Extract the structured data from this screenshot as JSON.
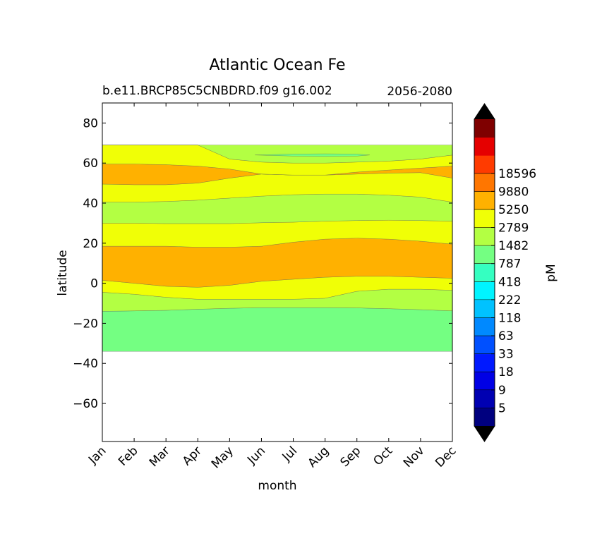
{
  "chart_data": {
    "type": "heatmap",
    "title": "Atlantic Ocean Fe",
    "subtitle_left": "b.e11.BRCP85C5CNBDRD.f09 g16.002",
    "subtitle_right": "2056-2080",
    "xlabel": "month",
    "ylabel": "latitude",
    "x_ticks": [
      "Jan",
      "Feb",
      "Mar",
      "Apr",
      "May",
      "Jun",
      "Jul",
      "Aug",
      "Sep",
      "Oct",
      "Nov",
      "Dec"
    ],
    "xlim": [
      0,
      11
    ],
    "ylim": [
      -79,
      90
    ],
    "y_ticks": [
      80,
      60,
      40,
      20,
      0,
      -20,
      -40,
      -60
    ],
    "y_tick_labels": [
      "80",
      "60",
      "40",
      "20",
      "0",
      "−20",
      "−40",
      "−60"
    ],
    "colorbar": {
      "label": "pM",
      "levels": [
        "5",
        "9",
        "18",
        "33",
        "63",
        "118",
        "222",
        "418",
        "787",
        "1482",
        "2789",
        "5250",
        "9880",
        "18596"
      ],
      "colors": [
        "#00007f",
        "#0000b2",
        "#0000e5",
        "#0019ff",
        "#0050ff",
        "#0089ff",
        "#00c2ff",
        "#00f4ff",
        "#35ffc1",
        "#74ff82",
        "#b3ff43",
        "#f0ff06",
        "#ffb100",
        "#ff7600",
        "#ff3b00",
        "#e50000",
        "#7f0000"
      ],
      "extend": "both"
    },
    "bands": [
      {
        "bin": "418-787",
        "color": "#74ff82",
        "lat_bottom": [
          -34,
          -34,
          -34,
          -34,
          -34,
          -34,
          -34,
          -34,
          -34,
          -34,
          -34,
          -34
        ],
        "lat_top": [
          -14,
          -13.8,
          -13.5,
          -13,
          -12.5,
          -12.2,
          -12.2,
          -12.2,
          -12.3,
          -12.7,
          -13.2,
          -13.8
        ]
      },
      {
        "bin": "787-1482",
        "color": "#b3ff43",
        "lat_bottom": [
          -14,
          -13.8,
          -13.5,
          -13,
          -12.5,
          -12.2,
          -12.2,
          -12.2,
          -12.3,
          -12.7,
          -13.2,
          -13.8
        ],
        "lat_top": [
          -4.5,
          -5.5,
          -7,
          -8,
          -8,
          -8,
          -8,
          -7.5,
          -4,
          -3,
          -3,
          -3.5
        ]
      },
      {
        "bin": "1482-2789",
        "color": "#f0ff06",
        "lat_bottom": [
          -4.5,
          -5.5,
          -7,
          -8,
          -8,
          -8,
          -8,
          -7.5,
          -4,
          -3,
          -3,
          -3.5
        ],
        "lat_top": [
          1.5,
          0,
          -1.5,
          -2,
          -1,
          1,
          2,
          3,
          3.5,
          3.5,
          3,
          2.5
        ]
      },
      {
        "bin": "2789-5250",
        "color": "#ffb100",
        "lat_bottom": [
          1.5,
          0,
          -1.5,
          -2,
          -1,
          1,
          2,
          3,
          3.5,
          3.5,
          3,
          2.5
        ],
        "lat_top": [
          18.5,
          18.5,
          18.5,
          18,
          18,
          18.5,
          20.5,
          22,
          22.5,
          22,
          21,
          19.5
        ]
      },
      {
        "bin": "1482-2789",
        "color": "#f0ff06",
        "lat_bottom": [
          18.5,
          18.5,
          18.5,
          18,
          18,
          18.5,
          20.5,
          22,
          22.5,
          22,
          21,
          19.5
        ],
        "lat_top": [
          30,
          30,
          29.8,
          29.8,
          29.8,
          30.2,
          30.5,
          31,
          31.3,
          31.5,
          31.3,
          31
        ]
      },
      {
        "bin": "787-1482",
        "color": "#b3ff43",
        "lat_bottom": [
          30,
          30,
          29.8,
          29.8,
          29.8,
          30.2,
          30.5,
          31,
          31.3,
          31.5,
          31.3,
          31
        ],
        "lat_top": [
          40.5,
          40.5,
          40.8,
          41.5,
          42.5,
          43.5,
          44.2,
          44.5,
          44.5,
          44,
          43,
          40.5
        ]
      },
      {
        "bin": "1482-2789",
        "color": "#f0ff06",
        "lat_bottom": [
          40.5,
          40.5,
          40.8,
          41.5,
          42.5,
          43.5,
          44.2,
          44.5,
          44.5,
          44,
          43,
          40.5
        ],
        "lat_top": [
          49.5,
          49.2,
          49.2,
          50,
          52.5,
          54.5,
          54,
          54,
          54.5,
          55,
          55.2,
          52.5
        ]
      },
      {
        "bin": "2789-5250",
        "color": "#ffb100",
        "lat_bottom": [
          49.5,
          49.2,
          49.2,
          50,
          52.5,
          54.5,
          54,
          54,
          54.5,
          55,
          55.2,
          52.5
        ],
        "lat_top": [
          59.5,
          59.5,
          59.2,
          58.5,
          57,
          54.5,
          54,
          54,
          55.5,
          56.5,
          57.5,
          58.5
        ]
      },
      {
        "bin": "1482-2789",
        "color": "#f0ff06",
        "lat_bottom": [
          59.5,
          59.5,
          59.2,
          58.5,
          57,
          54.5,
          54,
          54,
          55.5,
          56.5,
          57.5,
          58.5
        ],
        "lat_top": [
          69,
          69,
          69,
          69,
          62,
          60.5,
          60,
          60,
          60.5,
          61,
          62,
          64
        ]
      },
      {
        "bin": "787-1482",
        "color": "#b3ff43",
        "lat_bottom": [
          69,
          69,
          69,
          69,
          62,
          60.5,
          60,
          60,
          60.5,
          61,
          62,
          64
        ],
        "lat_top": [
          69,
          69,
          69,
          69,
          69,
          69,
          69,
          69,
          69,
          69,
          69,
          69
        ]
      },
      {
        "bin": "418-787",
        "color": "#74ff82",
        "lat_bottom": [
          64,
          63.5,
          63.3,
          63.5,
          64
        ],
        "lat_top": [
          64,
          64.5,
          64.6,
          64.5,
          64
        ],
        "x": [
          4.8,
          6,
          7,
          8,
          8.4
        ]
      }
    ]
  }
}
